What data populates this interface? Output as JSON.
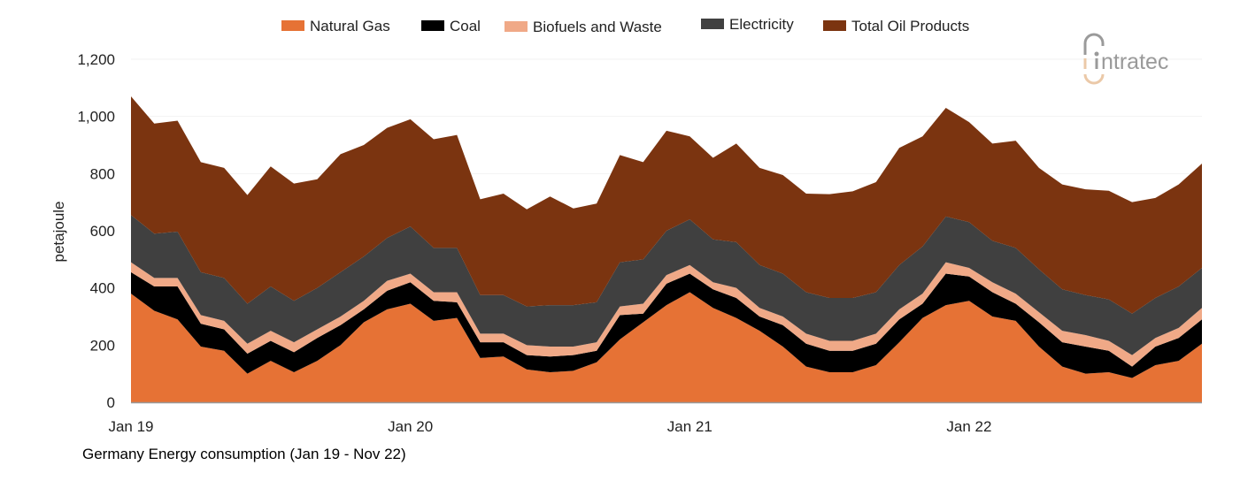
{
  "chart_data": {
    "type": "area",
    "stacked": true,
    "title": "",
    "caption": "Germany Energy consumption (Jan 19 - Nov 22)",
    "xlabel": "",
    "ylabel": "petajoule",
    "ylim": [
      0,
      1200
    ],
    "yticks": [
      0,
      200,
      400,
      600,
      800,
      1000,
      1200
    ],
    "ytick_labels": [
      "0",
      "200",
      "400",
      "600",
      "800",
      "1,000",
      "1,200"
    ],
    "x_start": "2019-01",
    "x_end": "2022-11",
    "frequency": "monthly",
    "xtick_labels": [
      {
        "label": "Jan 19",
        "month_index": 0
      },
      {
        "label": "Jan 20",
        "month_index": 12
      },
      {
        "label": "Jan 21",
        "month_index": 24
      },
      {
        "label": "Jan 22",
        "month_index": 36
      }
    ],
    "grid": "horizontal-faint",
    "legend_position": "top",
    "series": [
      {
        "name": "Natural Gas",
        "color": "#E67235",
        "values": [
          380,
          320,
          290,
          195,
          180,
          100,
          145,
          105,
          145,
          200,
          280,
          325,
          345,
          285,
          295,
          155,
          160,
          115,
          105,
          110,
          140,
          220,
          280,
          340,
          385,
          330,
          295,
          250,
          195,
          125,
          105,
          105,
          130,
          210,
          295,
          340,
          355,
          300,
          285,
          195,
          125,
          100,
          105,
          85,
          130,
          145,
          205
        ]
      },
      {
        "name": "Coal",
        "color": "#000000",
        "values": [
          75,
          85,
          115,
          80,
          75,
          70,
          70,
          70,
          80,
          70,
          45,
          65,
          75,
          70,
          55,
          55,
          50,
          50,
          55,
          55,
          40,
          85,
          30,
          75,
          65,
          65,
          70,
          50,
          75,
          80,
          75,
          75,
          75,
          80,
          50,
          110,
          85,
          85,
          60,
          85,
          85,
          95,
          75,
          40,
          65,
          80,
          85
        ]
      },
      {
        "name": "Biofuels and Waste",
        "color": "#F0A987",
        "values": [
          35,
          30,
          30,
          30,
          30,
          35,
          35,
          35,
          30,
          30,
          30,
          35,
          30,
          30,
          35,
          30,
          30,
          35,
          35,
          30,
          30,
          30,
          35,
          30,
          30,
          25,
          35,
          30,
          30,
          35,
          35,
          35,
          35,
          35,
          35,
          40,
          30,
          35,
          35,
          35,
          40,
          40,
          35,
          40,
          30,
          35,
          40
        ]
      },
      {
        "name": "Electricity",
        "color": "#404040",
        "values": [
          165,
          155,
          162,
          150,
          150,
          140,
          155,
          145,
          145,
          155,
          155,
          150,
          165,
          155,
          155,
          135,
          135,
          135,
          145,
          145,
          140,
          155,
          155,
          155,
          160,
          150,
          160,
          150,
          150,
          145,
          150,
          150,
          145,
          155,
          165,
          160,
          160,
          145,
          160,
          150,
          145,
          140,
          145,
          145,
          140,
          145,
          140
        ]
      },
      {
        "name": "Total Oil Products",
        "color": "#7B3410",
        "values": [
          415,
          385,
          388,
          385,
          385,
          380,
          420,
          410,
          380,
          413,
          390,
          385,
          375,
          380,
          395,
          335,
          355,
          340,
          380,
          338,
          345,
          375,
          340,
          350,
          290,
          285,
          345,
          340,
          345,
          345,
          363,
          373,
          385,
          410,
          385,
          380,
          350,
          340,
          375,
          355,
          367,
          370,
          380,
          390,
          350,
          357,
          365
        ]
      }
    ]
  },
  "logo": {
    "text": "intratec",
    "colors": [
      "#9A9A9A",
      "#EBC9A8"
    ]
  }
}
